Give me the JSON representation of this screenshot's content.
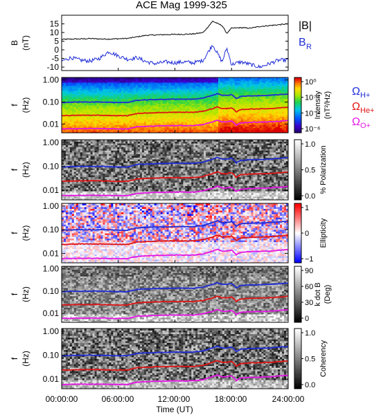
{
  "title": "ACE Mag 1999-325",
  "colors": {
    "h_plus": "#1f2cd6",
    "he_plus": "#e01414",
    "o_plus": "#e414e4",
    "bmag": "#000000",
    "br": "#1f2cd6"
  },
  "chart_data": [
    {
      "type": "line",
      "panel": "field",
      "ylabel_top": "B",
      "ylabel_unit": "(nT)",
      "ylim": [
        -12,
        20
      ],
      "yticks": [
        15,
        10,
        5,
        0,
        -5,
        -10
      ],
      "x_hours": [
        0,
        1,
        2,
        3,
        4,
        5,
        6,
        7,
        8,
        9,
        10,
        11,
        12,
        13,
        14,
        15,
        16,
        17,
        17.5,
        18,
        19,
        20,
        21,
        22,
        23,
        24
      ],
      "series": [
        {
          "name": "|B|",
          "color_key": "bmag",
          "values": [
            6,
            6.2,
            6.3,
            6.5,
            6.3,
            6.2,
            6.4,
            6.6,
            7.5,
            8.4,
            8.6,
            8.8,
            8.9,
            9,
            9.2,
            10,
            16.5,
            14,
            9.5,
            12.5,
            12.8,
            12.5,
            13.5,
            14,
            14.5,
            15
          ]
        },
        {
          "name": "B",
          "name_sub": "R",
          "color_key": "br",
          "values": [
            -6.5,
            -4.5,
            -6,
            -6.5,
            -5,
            -1,
            -3.5,
            -5.5,
            -4.5,
            -7,
            -8,
            -7,
            -7.5,
            -7,
            -7.5,
            -6,
            3,
            -7,
            1,
            -8.5,
            -7,
            -8.5,
            -10,
            -8,
            -6,
            -6
          ]
        }
      ],
      "legend_position": "right"
    },
    {
      "type": "heatmap",
      "panel": "intensity",
      "ylabel_top": "f",
      "ylabel_unit": "(Hz)",
      "yscale": "log",
      "ylim": [
        0.004,
        1.3
      ],
      "yticks": [
        "1.00",
        "0.10",
        "0.01"
      ],
      "colorbar": {
        "label": "Intensity",
        "unit": "(nT²/Hz)",
        "scale": "log",
        "range": [
          1e-06,
          1
        ],
        "palette": "rainbow",
        "ticks": [
          "10⁰",
          "10⁻²",
          "10⁻⁴",
          "10⁻⁶"
        ]
      },
      "legend": [
        {
          "symbol": "Ω",
          "sub": "H+",
          "color_key": "h_plus"
        },
        {
          "symbol": "Ω",
          "sub": "He+",
          "color_key": "he_plus"
        },
        {
          "symbol": "Ω",
          "sub": "O+",
          "color_key": "o_plus"
        }
      ]
    },
    {
      "type": "heatmap",
      "panel": "polarization",
      "ylabel_top": "f",
      "ylabel_unit": "(Hz)",
      "yscale": "log",
      "ylim": [
        0.004,
        1.3
      ],
      "yticks": [
        "1.00",
        "0.10",
        "0.01"
      ],
      "colorbar": {
        "label": "% Polarization",
        "unit": "",
        "scale": "linear",
        "range": [
          0,
          1
        ],
        "palette": "gray",
        "ticks": [
          "1.0",
          "0.5",
          "0.0"
        ]
      }
    },
    {
      "type": "heatmap",
      "panel": "ellipticity",
      "ylabel_top": "f",
      "ylabel_unit": "(Hz)",
      "yscale": "log",
      "ylim": [
        0.004,
        1.3
      ],
      "yticks": [
        "1.00",
        "0.10",
        "0.01"
      ],
      "colorbar": {
        "label": "Ellipticity",
        "unit": "",
        "scale": "linear",
        "range": [
          -1,
          1
        ],
        "palette": "bwr",
        "ticks": [
          "1",
          "0",
          "−1"
        ]
      }
    },
    {
      "type": "heatmap",
      "panel": "kdotb",
      "ylabel_top": "f",
      "ylabel_unit": "(Hz)",
      "yscale": "log",
      "ylim": [
        0.004,
        1.3
      ],
      "yticks": [
        "1.00",
        "0.10",
        "0.01"
      ],
      "colorbar": {
        "label": "k dot B",
        "unit": "(Deg)",
        "scale": "linear",
        "range": [
          0,
          90
        ],
        "palette": "gray",
        "ticks": [
          "90",
          "60",
          "30",
          "0"
        ]
      }
    },
    {
      "type": "heatmap",
      "panel": "coherency",
      "ylabel_top": "f",
      "ylabel_unit": "(Hz)",
      "yscale": "log",
      "ylim": [
        0.004,
        1.3
      ],
      "yticks": [
        "1.00",
        "0.10",
        "0.01"
      ],
      "colorbar": {
        "label": "Coherency",
        "unit": "",
        "scale": "linear",
        "range": [
          0,
          1
        ],
        "palette": "gray",
        "ticks": [
          "1.0",
          "0.5",
          "0.0"
        ]
      }
    }
  ],
  "gyrofrequency_lines": {
    "x_hours": [
      0,
      2,
      4,
      6,
      7,
      8,
      10,
      12,
      14,
      15,
      16,
      16.5,
      17,
      17.5,
      18,
      18.5,
      19,
      20,
      22,
      24
    ],
    "h_plus_hz": [
      0.095,
      0.1,
      0.1,
      0.095,
      0.095,
      0.12,
      0.13,
      0.135,
      0.135,
      0.15,
      0.2,
      0.24,
      0.2,
      0.2,
      0.22,
      0.14,
      0.18,
      0.19,
      0.2,
      0.23
    ],
    "he_plus_hz": [
      0.024,
      0.025,
      0.025,
      0.024,
      0.024,
      0.03,
      0.033,
      0.034,
      0.034,
      0.038,
      0.05,
      0.06,
      0.05,
      0.05,
      0.055,
      0.035,
      0.045,
      0.048,
      0.05,
      0.058
    ],
    "o_plus_hz": [
      0.006,
      0.0062,
      0.0062,
      0.006,
      0.006,
      0.0075,
      0.0082,
      0.0085,
      0.0085,
      0.0095,
      0.0125,
      0.015,
      0.0125,
      0.0125,
      0.0138,
      0.0088,
      0.0112,
      0.012,
      0.0125,
      0.0145
    ]
  },
  "x_axis": {
    "label": "Time (UT)",
    "range_hours": [
      0,
      24
    ],
    "tick_labels": [
      "00:00:00",
      "06:00:00",
      "12:00:00",
      "18:00:00",
      "24:00:00"
    ]
  }
}
